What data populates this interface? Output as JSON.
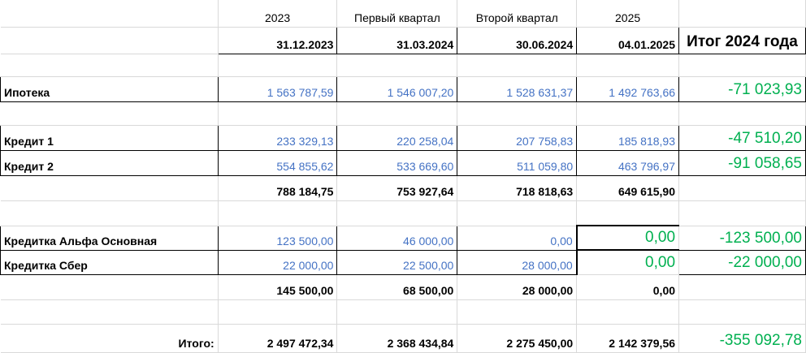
{
  "header": {
    "col_years": [
      "2023",
      "Первый квартал",
      "Второй квартал",
      "2025"
    ],
    "dates": [
      "31.12.2023",
      "31.03.2024",
      "30.06.2024",
      "04.01.2025"
    ],
    "itog_label": "Итог 2024 года"
  },
  "mortgage": {
    "label": "Ипотека",
    "values": [
      "1 563 787,59",
      "1 546 007,20",
      "1 528 631,37",
      "1 492 763,66"
    ],
    "result": "-71 023,93"
  },
  "credits": [
    {
      "label": "Кредит 1",
      "values": [
        "233 329,13",
        "220 258,04",
        "207 758,83",
        "185 818,93"
      ],
      "result": "-47 510,20"
    },
    {
      "label": "Кредит 2",
      "values": [
        "554 855,62",
        "533 669,60",
        "511 059,80",
        "463 796,97"
      ],
      "result": "-91 058,65"
    }
  ],
  "credits_total": [
    "788 184,75",
    "753 927,64",
    "718 818,63",
    "649 615,90"
  ],
  "cards": [
    {
      "label": "Кредитка Альфа Основная",
      "values": [
        "123 500,00",
        "46 000,00",
        "0,00",
        "0,00"
      ],
      "result": "-123 500,00"
    },
    {
      "label": "Кредитка Сбер",
      "values": [
        "22 000,00",
        "22 500,00",
        "28 000,00",
        "0,00"
      ],
      "result": "-22 000,00"
    }
  ],
  "cards_total": [
    "145 500,00",
    "68 500,00",
    "28 000,00",
    "0,00"
  ],
  "grand_total": {
    "label": "Итого:",
    "values": [
      "2 497 472,34",
      "2 368 434,84",
      "2 275 450,00",
      "2 142 379,56"
    ],
    "result": "-355 092,78"
  },
  "colors": {
    "blue_values": "#4472c4",
    "green_results": "#00b050"
  }
}
